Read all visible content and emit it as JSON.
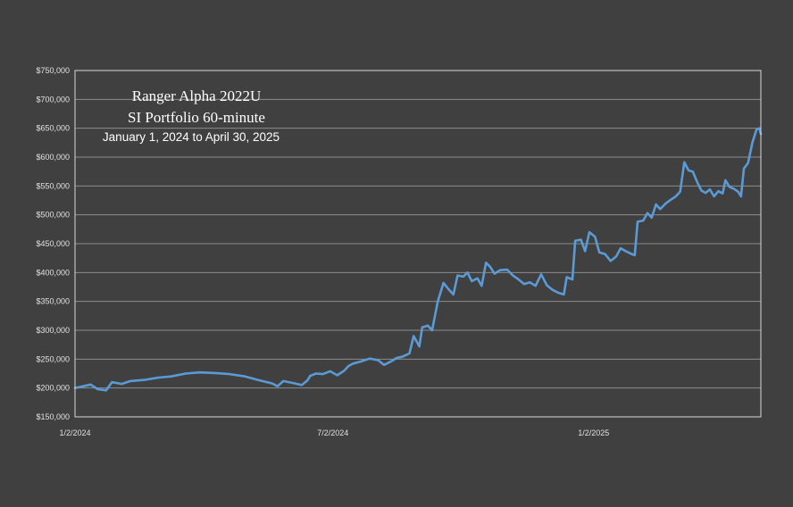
{
  "chart_data": {
    "type": "line",
    "title": [
      "Ranger Alpha 2022U",
      "SI Portfolio 60-minute",
      "January 1, 2024 to April 30, 2025"
    ],
    "xlabel": "",
    "ylabel": "",
    "xlim": [
      "2024-01-02",
      "2025-04-30"
    ],
    "ylim": [
      150000,
      750000
    ],
    "y_ticks": [
      "$150,000",
      "$200,000",
      "$250,000",
      "$300,000",
      "$350,000",
      "$400,000",
      "$450,000",
      "$500,000",
      "$550,000",
      "$600,000",
      "$650,000",
      "$700,000",
      "$750,000"
    ],
    "x_ticks": [
      {
        "date": "2024-01-02",
        "label": "1/2/2024"
      },
      {
        "date": "2024-07-02",
        "label": "7/2/2024"
      },
      {
        "date": "2025-01-02",
        "label": "1/2/2025"
      }
    ],
    "grid": true,
    "legend": "none",
    "line_color": "#5b9bd5",
    "series": [
      {
        "points": [
          [
            "2024-01-02",
            200000
          ],
          [
            "2024-01-08",
            203000
          ],
          [
            "2024-01-13",
            206000
          ],
          [
            "2024-01-18",
            198000
          ],
          [
            "2024-01-24",
            196000
          ],
          [
            "2024-01-28",
            210000
          ],
          [
            "2024-02-04",
            207000
          ],
          [
            "2024-02-10",
            212000
          ],
          [
            "2024-02-20",
            214000
          ],
          [
            "2024-03-01",
            218000
          ],
          [
            "2024-03-10",
            220000
          ],
          [
            "2024-03-20",
            225000
          ],
          [
            "2024-03-30",
            227000
          ],
          [
            "2024-04-10",
            226000
          ],
          [
            "2024-04-20",
            224000
          ],
          [
            "2024-05-01",
            220000
          ],
          [
            "2024-05-10",
            214000
          ],
          [
            "2024-05-20",
            208000
          ],
          [
            "2024-05-24",
            203000
          ],
          [
            "2024-05-28",
            212000
          ],
          [
            "2024-06-05",
            208000
          ],
          [
            "2024-06-10",
            205000
          ],
          [
            "2024-06-14",
            213000
          ],
          [
            "2024-06-16",
            221000
          ],
          [
            "2024-06-20",
            225000
          ],
          [
            "2024-06-25",
            224000
          ],
          [
            "2024-06-30",
            229000
          ],
          [
            "2024-07-05",
            222000
          ],
          [
            "2024-07-10",
            230000
          ],
          [
            "2024-07-13",
            238000
          ],
          [
            "2024-07-16",
            242000
          ],
          [
            "2024-07-22",
            246000
          ],
          [
            "2024-07-28",
            251000
          ],
          [
            "2024-08-03",
            248000
          ],
          [
            "2024-08-07",
            240000
          ],
          [
            "2024-08-12",
            246000
          ],
          [
            "2024-08-16",
            252000
          ],
          [
            "2024-08-20",
            254000
          ],
          [
            "2024-08-25",
            260000
          ],
          [
            "2024-08-28",
            290000
          ],
          [
            "2024-09-01",
            272000
          ],
          [
            "2024-09-03",
            305000
          ],
          [
            "2024-09-07",
            308000
          ],
          [
            "2024-09-10",
            300000
          ],
          [
            "2024-09-14",
            350000
          ],
          [
            "2024-09-18",
            382000
          ],
          [
            "2024-09-22",
            370000
          ],
          [
            "2024-09-25",
            362000
          ],
          [
            "2024-09-28",
            395000
          ],
          [
            "2024-10-02",
            393000
          ],
          [
            "2024-10-05",
            400000
          ],
          [
            "2024-10-08",
            385000
          ],
          [
            "2024-10-12",
            390000
          ],
          [
            "2024-10-15",
            377000
          ],
          [
            "2024-10-18",
            417000
          ],
          [
            "2024-10-21",
            410000
          ],
          [
            "2024-10-24",
            398000
          ],
          [
            "2024-10-28",
            404000
          ],
          [
            "2024-11-02",
            405000
          ],
          [
            "2024-11-06",
            395000
          ],
          [
            "2024-11-10",
            388000
          ],
          [
            "2024-11-14",
            380000
          ],
          [
            "2024-11-18",
            383000
          ],
          [
            "2024-11-22",
            377000
          ],
          [
            "2024-11-26",
            397000
          ],
          [
            "2024-11-30",
            378000
          ],
          [
            "2024-12-04",
            370000
          ],
          [
            "2024-12-08",
            365000
          ],
          [
            "2024-12-12",
            362000
          ],
          [
            "2024-12-14",
            392000
          ],
          [
            "2024-12-18",
            388000
          ],
          [
            "2024-12-20",
            455000
          ],
          [
            "2024-12-24",
            457000
          ],
          [
            "2024-12-27",
            437000
          ],
          [
            "2024-12-30",
            470000
          ],
          [
            "2025-01-03",
            462000
          ],
          [
            "2025-01-06",
            435000
          ],
          [
            "2025-01-10",
            432000
          ],
          [
            "2025-01-14",
            420000
          ],
          [
            "2025-01-18",
            428000
          ],
          [
            "2025-01-21",
            442000
          ],
          [
            "2025-01-24",
            438000
          ],
          [
            "2025-01-28",
            433000
          ],
          [
            "2025-01-31",
            430000
          ],
          [
            "2025-02-02",
            488000
          ],
          [
            "2025-02-06",
            490000
          ],
          [
            "2025-02-09",
            503000
          ],
          [
            "2025-02-12",
            495000
          ],
          [
            "2025-02-15",
            518000
          ],
          [
            "2025-02-18",
            510000
          ],
          [
            "2025-02-22",
            520000
          ],
          [
            "2025-02-26",
            527000
          ],
          [
            "2025-03-01",
            532000
          ],
          [
            "2025-03-04",
            540000
          ],
          [
            "2025-03-07",
            591000
          ],
          [
            "2025-03-10",
            577000
          ],
          [
            "2025-03-13",
            575000
          ],
          [
            "2025-03-16",
            557000
          ],
          [
            "2025-03-19",
            542000
          ],
          [
            "2025-03-22",
            538000
          ],
          [
            "2025-03-25",
            544000
          ],
          [
            "2025-03-28",
            532000
          ],
          [
            "2025-03-31",
            541000
          ],
          [
            "2025-04-03",
            537000
          ],
          [
            "2025-04-05",
            560000
          ],
          [
            "2025-04-08",
            548000
          ],
          [
            "2025-04-11",
            545000
          ],
          [
            "2025-04-14",
            540000
          ],
          [
            "2025-04-16",
            532000
          ],
          [
            "2025-04-18",
            580000
          ],
          [
            "2025-04-21",
            590000
          ],
          [
            "2025-04-24",
            625000
          ],
          [
            "2025-04-27",
            648000
          ],
          [
            "2025-04-29",
            650000
          ],
          [
            "2025-04-30",
            640000
          ]
        ]
      }
    ]
  }
}
